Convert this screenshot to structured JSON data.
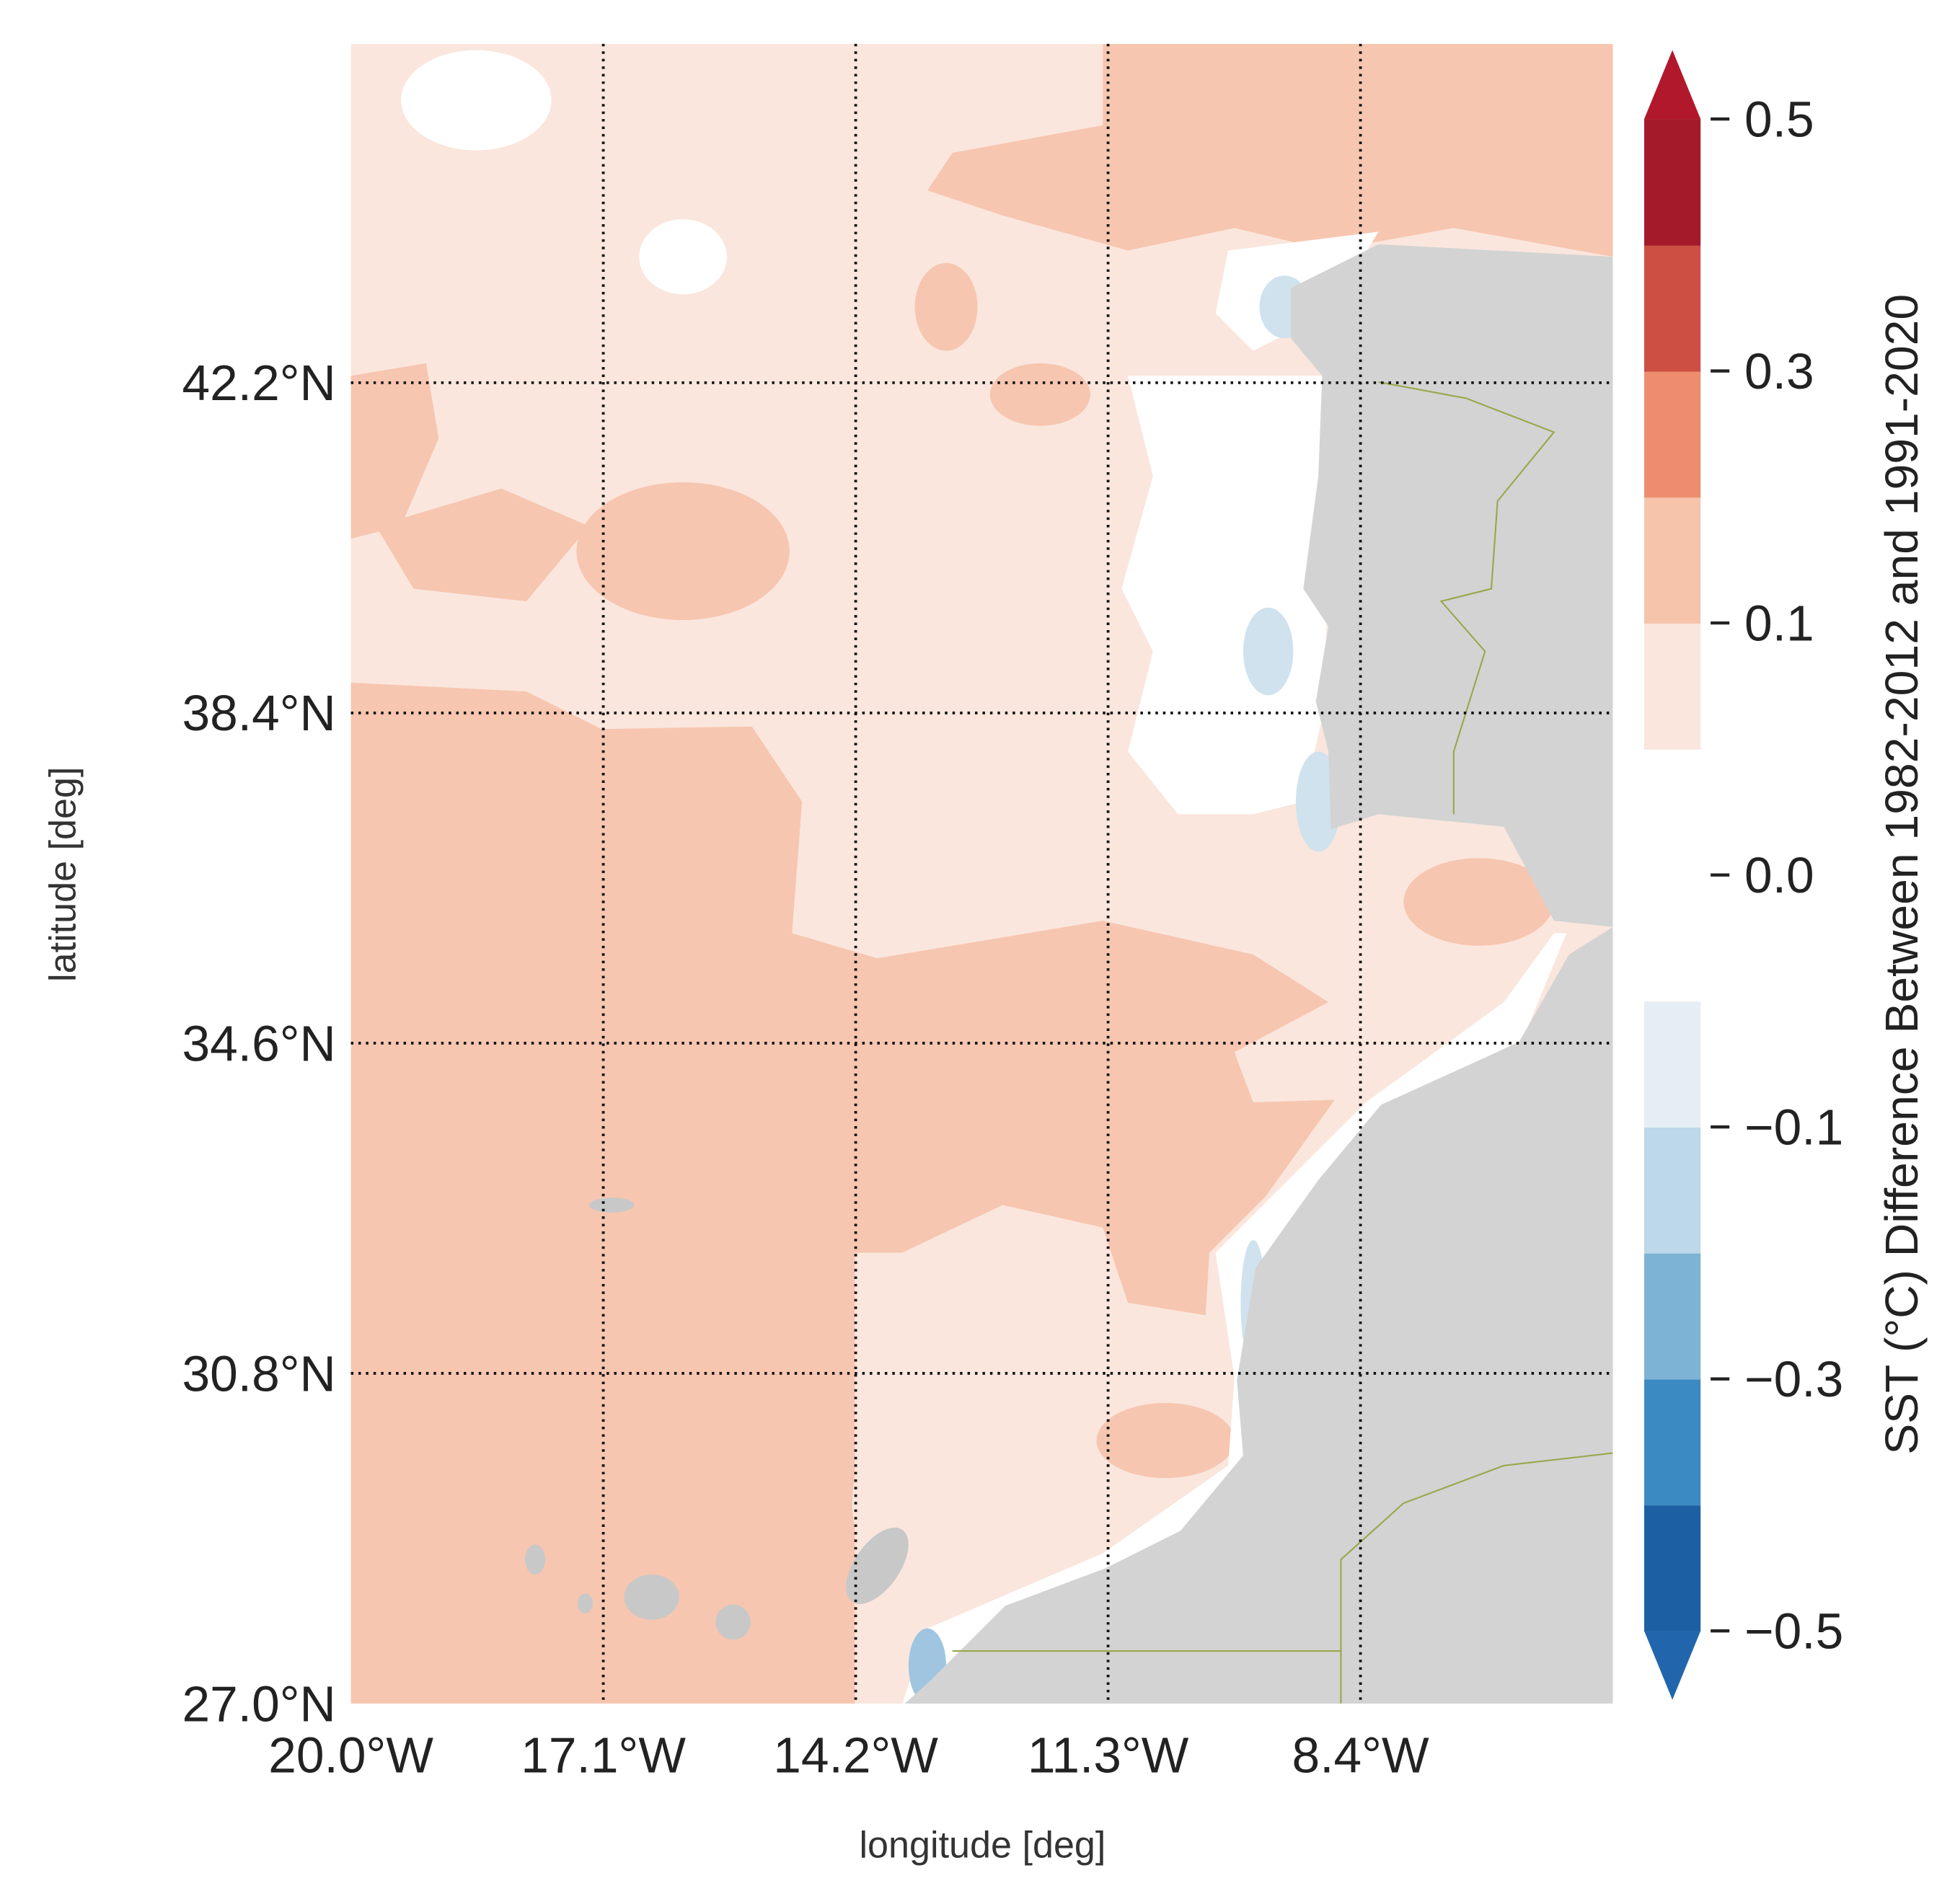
{
  "map": {
    "xlabel": "longitude [deg]",
    "ylabel": "latitude [deg]",
    "xlim": [
      -20,
      -5.5
    ],
    "ylim": [
      27,
      46.1
    ],
    "xticks": [
      {
        "value": -20,
        "label": "20.0°W"
      },
      {
        "value": -17.1,
        "label": "17.1°W"
      },
      {
        "value": -14.2,
        "label": "14.2°W"
      },
      {
        "value": -11.3,
        "label": "11.3°W"
      },
      {
        "value": -8.4,
        "label": "8.4°W"
      }
    ],
    "yticks": [
      {
        "value": 27,
        "label": "27.0°N"
      },
      {
        "value": 30.8,
        "label": "30.8°N"
      },
      {
        "value": 34.6,
        "label": "34.6°N"
      },
      {
        "value": 38.4,
        "label": "38.4°N"
      },
      {
        "value": 42.2,
        "label": "42.2°N"
      }
    ],
    "grid": true
  },
  "colorbar": {
    "label": "SST (°C) Difference Between 1982-2012 and 1991-2020",
    "levels": [
      -0.5,
      -0.4,
      -0.3,
      -0.2,
      -0.1,
      -0.05,
      0,
      0.05,
      0.1,
      0.2,
      0.3,
      0.4,
      0.5
    ],
    "colors": [
      "#1d5fa3",
      "#3c8ac2",
      "#7db3d5",
      "#bcd8e9",
      "#e5eef4",
      "#ffffff",
      "#ffffff",
      "#fae6dd",
      "#f6c4aa",
      "#ed8d6e",
      "#cd4f44",
      "#a51a2b"
    ],
    "extend": "both",
    "under_color": "#2166ac",
    "over_color": "#b2182b",
    "ticks": [
      0.5,
      0.3,
      0.1,
      {
        "value": 0,
        "label": "0.0"
      },
      {
        "value": -0.1,
        "label": "−0.1"
      },
      {
        "value": -0.3,
        "label": "−0.3"
      },
      {
        "value": -0.5,
        "label": "−0.5"
      }
    ]
  }
}
